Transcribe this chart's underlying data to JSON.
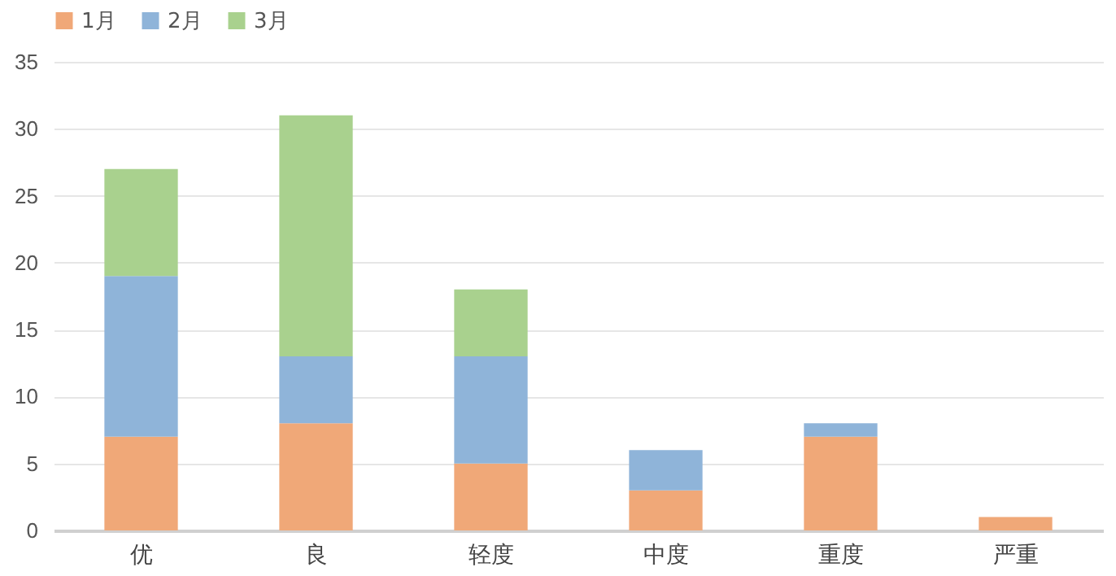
{
  "chart_data": {
    "type": "bar",
    "stacked": true,
    "categories": [
      "优",
      "良",
      "轻度",
      "中度",
      "重度",
      "严重"
    ],
    "series": [
      {
        "name": "1月",
        "color": "#f0a878",
        "values": [
          7,
          8,
          5,
          3,
          7,
          1
        ]
      },
      {
        "name": "2月",
        "color": "#8fb4d9",
        "values": [
          12,
          5,
          8,
          3,
          1,
          0
        ]
      },
      {
        "name": "3月",
        "color": "#a9d18e",
        "values": [
          8,
          18,
          5,
          0,
          0,
          0
        ]
      }
    ],
    "ylim": [
      0,
      35
    ],
    "yticks": [
      0,
      5,
      10,
      15,
      20,
      25,
      30,
      35
    ],
    "grid": "y",
    "legend": "top"
  }
}
